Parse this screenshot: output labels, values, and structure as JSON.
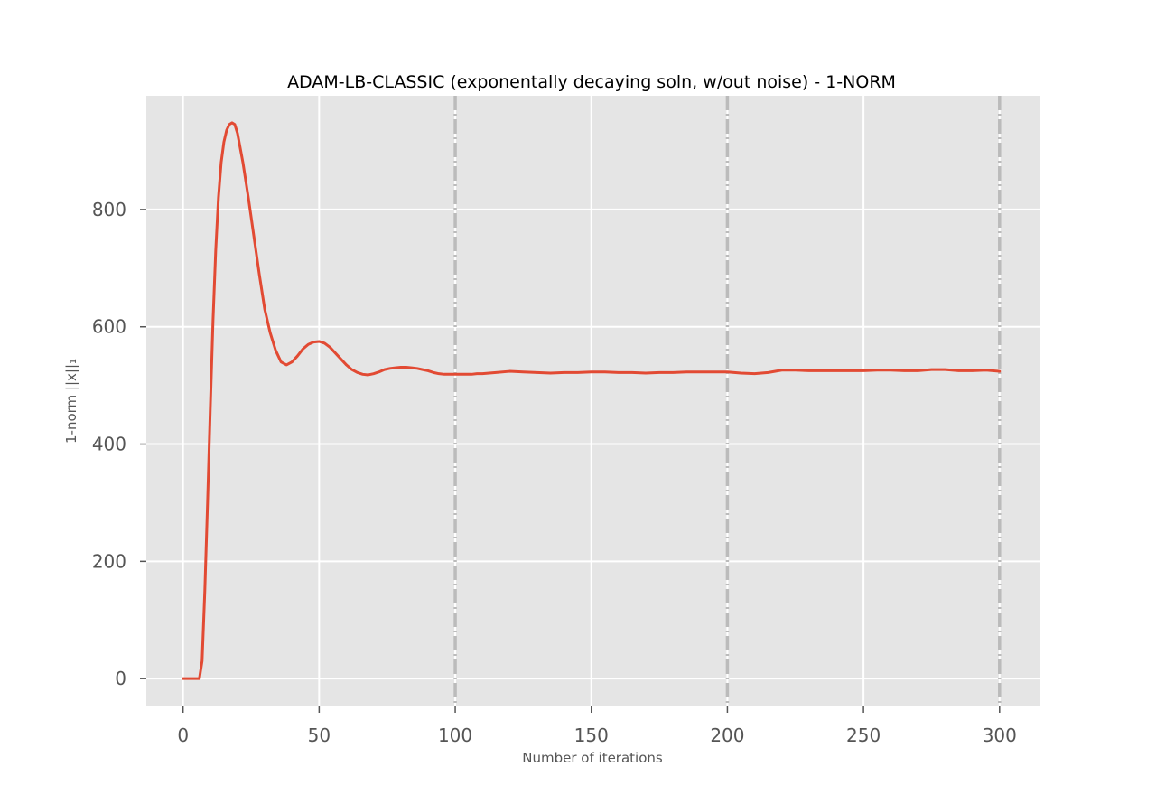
{
  "chart_data": {
    "type": "line",
    "title": "ADAM-LB-CLASSIC (exponentally decaying soln, w/out noise) - 1-NORM",
    "xlabel": "Number of iterations",
    "ylabel": "1-norm ||x||₁",
    "xlim": [
      -13.5,
      315
    ],
    "ylim": [
      -47.5,
      994
    ],
    "xticks": [
      0,
      50,
      100,
      150,
      200,
      250,
      300
    ],
    "yticks": [
      0,
      200,
      400,
      600,
      800
    ],
    "grid": true,
    "legend": "none",
    "colors": {
      "background": "#e5e5e5",
      "grid": "#ffffff",
      "line": "#e24a33",
      "vline": "#bbbbbb"
    },
    "vlines": [
      100,
      200,
      300
    ],
    "series": [
      {
        "x": [
          0,
          2,
          4,
          6,
          7,
          8,
          9,
          10,
          11,
          12,
          13,
          14,
          15,
          16,
          17,
          18,
          19,
          20,
          22,
          24,
          26,
          28,
          30,
          32,
          34,
          36,
          38,
          40,
          42,
          44,
          46,
          48,
          50,
          52,
          54,
          56,
          58,
          60,
          62,
          64,
          66,
          68,
          70,
          72,
          74,
          76,
          78,
          80,
          82,
          84,
          86,
          88,
          90,
          92,
          94,
          96,
          98,
          100,
          102,
          104,
          106,
          108,
          110,
          115,
          120,
          125,
          130,
          135,
          140,
          145,
          150,
          155,
          160,
          165,
          170,
          175,
          180,
          185,
          190,
          195,
          200,
          205,
          210,
          215,
          220,
          225,
          230,
          235,
          240,
          245,
          250,
          255,
          260,
          265,
          270,
          275,
          280,
          285,
          290,
          295,
          300
        ],
        "y": [
          0,
          0,
          0,
          0,
          30,
          150,
          300,
          460,
          610,
          730,
          820,
          880,
          915,
          935,
          945,
          948,
          945,
          930,
          880,
          820,
          755,
          690,
          630,
          590,
          560,
          540,
          535,
          540,
          550,
          562,
          570,
          574,
          575,
          572,
          565,
          555,
          545,
          535,
          527,
          522,
          519,
          518,
          520,
          523,
          527,
          529,
          530,
          531,
          531,
          530,
          529,
          527,
          525,
          522,
          520,
          519,
          519,
          519,
          519,
          519,
          519,
          520,
          520,
          522,
          524,
          523,
          522,
          521,
          522,
          522,
          523,
          523,
          522,
          522,
          521,
          522,
          522,
          523,
          523,
          523,
          523,
          521,
          520,
          522,
          526,
          526,
          525,
          525,
          525,
          525,
          525,
          526,
          526,
          525,
          525,
          527,
          527,
          525,
          525,
          526,
          524
        ]
      }
    ]
  }
}
